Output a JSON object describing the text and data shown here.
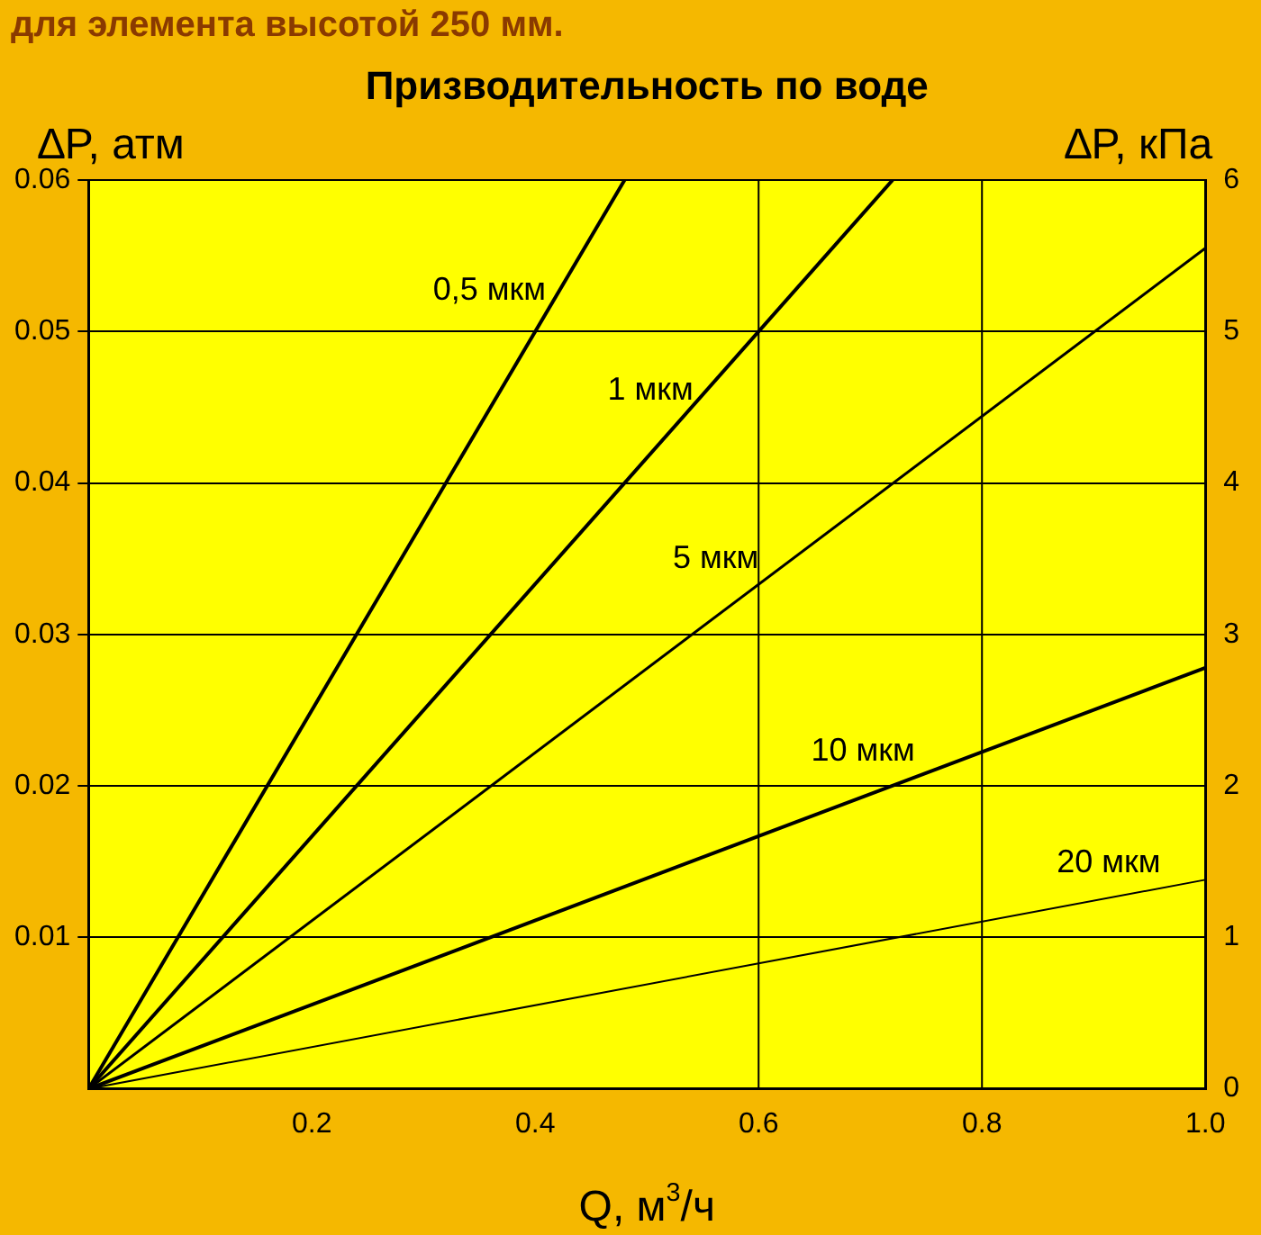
{
  "chart_data": {
    "type": "line",
    "title": "Призводительность по воде",
    "xlabel": "Q, м$^{3}$/ч",
    "ylabel": "∆P, атм",
    "y2label": "∆P, кПа",
    "annotations": [
      "для элемента высотой 250 мм."
    ],
    "series": [
      {
        "name": "0,5 мкм",
        "color": "#000000",
        "x": [
          0,
          0.48
        ],
        "values": [
          0,
          0.06
        ]
      },
      {
        "name": "1 мкм",
        "color": "#000000",
        "x": [
          0,
          0.72
        ],
        "values": [
          0,
          0.06
        ]
      },
      {
        "name": "5 мкм",
        "color": "#000000",
        "x": [
          0,
          1.0
        ],
        "values": [
          0,
          0.0555
        ]
      },
      {
        "name": "10 мкм",
        "color": "#000000",
        "x": [
          0,
          1.0
        ],
        "values": [
          0,
          0.0278
        ]
      },
      {
        "name": "20 мкм",
        "color": "#000000",
        "x": [
          0,
          1.0
        ],
        "values": [
          0,
          0.0138
        ]
      }
    ],
    "xlim": [
      0,
      1
    ],
    "xticks": [
      0.2,
      0.4,
      0.6,
      0.8,
      {
        "value": 1,
        "label": "1.0"
      }
    ],
    "ylim": [
      0,
      0.06
    ],
    "yticks": [
      0.01,
      0.02,
      0.03,
      0.04,
      0.05,
      0.06
    ],
    "y2lim": [
      0,
      6
    ],
    "y2ticks": [
      0,
      1,
      2,
      3,
      4,
      5,
      6
    ],
    "ref_lines": [
      {
        "axis": "x",
        "value": 0.6,
        "color": "#000000"
      },
      {
        "axis": "x",
        "value": 0.8,
        "color": "#000000"
      }
    ],
    "grid": "y",
    "legend": false,
    "marker": "none",
    "line_style": "solid"
  }
}
